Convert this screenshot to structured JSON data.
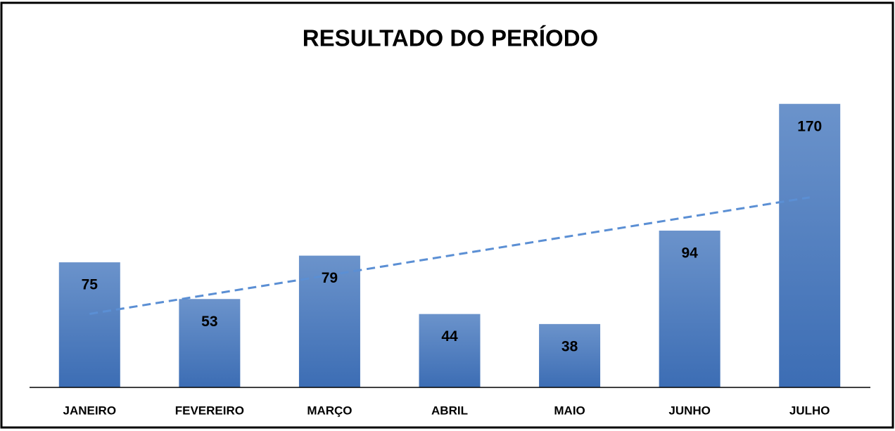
{
  "chart_data": {
    "type": "bar",
    "title": "RESULTADO DO PERÍODO",
    "categories": [
      "JANEIRO",
      "FEVEREIRO",
      "MARÇO",
      "ABRIL",
      "MAIO",
      "JUNHO",
      "JULHO"
    ],
    "values": [
      75,
      53,
      79,
      44,
      38,
      94,
      170
    ],
    "color": "#4a7cc0",
    "trendline_color": "#5b8fd4",
    "ylim": [
      0,
      180
    ],
    "trendline": true
  }
}
